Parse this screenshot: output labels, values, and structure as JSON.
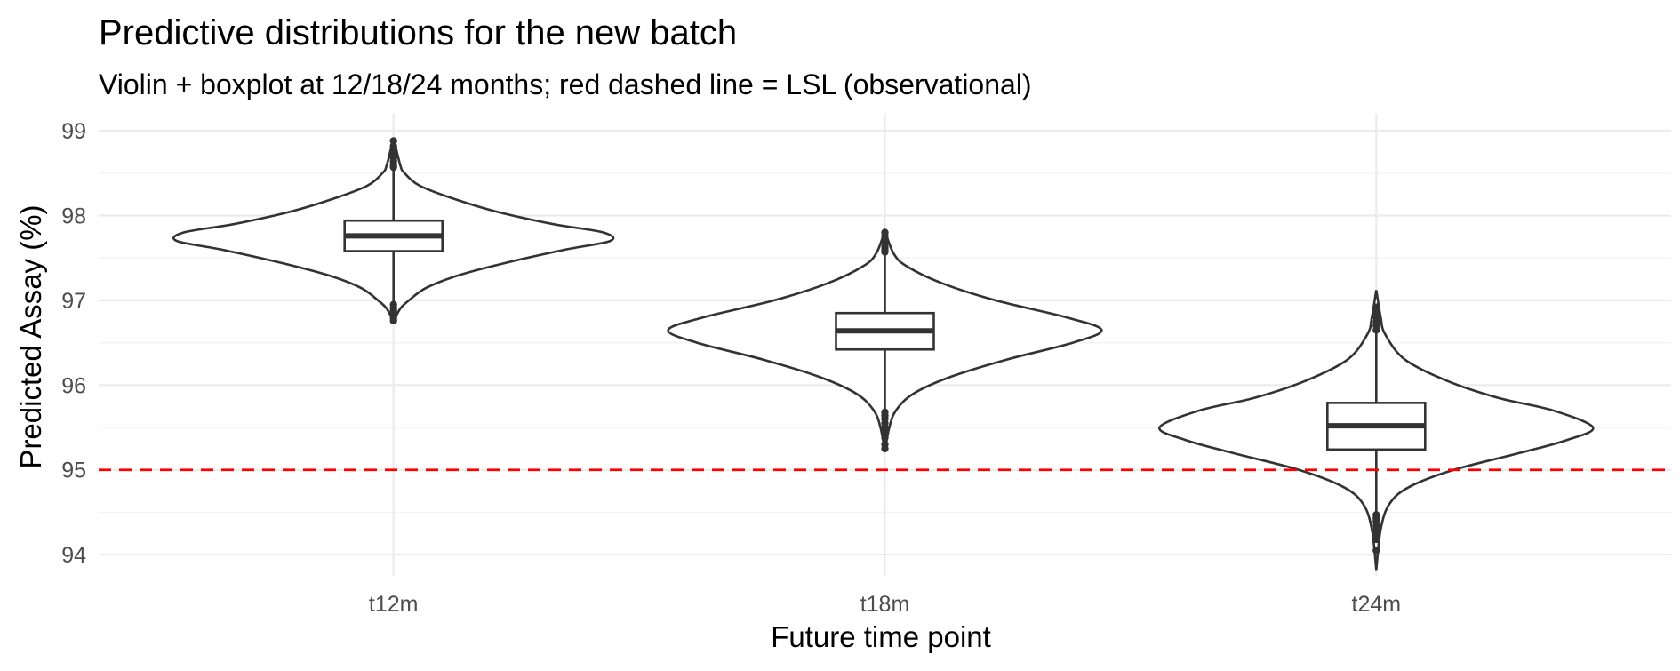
{
  "title": "Predictive distributions for the new batch",
  "subtitle": "Violin + boxplot at 12/18/24 months; red dashed line = LSL (observational)",
  "chart_data": {
    "type": "violin",
    "title": "Predictive distributions for the new batch",
    "subtitle": "Violin + boxplot at 12/18/24 months; red dashed line = LSL (observational)",
    "xlabel": "Future time point",
    "ylabel": "Predicted Assay (%)",
    "categories": [
      "t12m",
      "t18m",
      "t24m"
    ],
    "ylim": [
      93.75,
      99.2
    ],
    "y_ticks": [
      94,
      95,
      96,
      97,
      98,
      99
    ],
    "y_minor_ticks": [
      94.5,
      95.5,
      96.5,
      97.5,
      98.5
    ],
    "grid": true,
    "legend": "none",
    "reference_line": {
      "y": 95.0,
      "label": "LSL",
      "color": "#ff0000",
      "style": "dashed"
    },
    "series": [
      {
        "category": "t12m",
        "min": 96.75,
        "max": 98.92,
        "q1": 97.58,
        "median": 97.76,
        "q3": 97.94,
        "whisker_low": 96.97,
        "whisker_high": 98.55,
        "outliers_low": [
          96.95,
          96.91,
          96.88,
          96.85,
          96.82,
          96.79,
          96.76
        ],
        "outliers_high": [
          98.57,
          98.6,
          98.64,
          98.68,
          98.72,
          98.77,
          98.82,
          98.88
        ],
        "violin_half_width": [
          [
            96.75,
            0.0
          ],
          [
            96.9,
            0.03
          ],
          [
            97.0,
            0.07
          ],
          [
            97.15,
            0.15
          ],
          [
            97.3,
            0.3
          ],
          [
            97.45,
            0.52
          ],
          [
            97.6,
            0.78
          ],
          [
            97.7,
            0.98
          ],
          [
            97.8,
            0.95
          ],
          [
            97.9,
            0.72
          ],
          [
            98.05,
            0.46
          ],
          [
            98.2,
            0.27
          ],
          [
            98.35,
            0.12
          ],
          [
            98.5,
            0.05
          ],
          [
            98.6,
            0.03
          ],
          [
            98.92,
            0.0
          ]
        ]
      },
      {
        "category": "t18m",
        "min": 95.22,
        "max": 97.82,
        "q1": 96.42,
        "median": 96.64,
        "q3": 96.85,
        "whisker_low": 95.7,
        "whisker_high": 97.55,
        "outliers_low": [
          95.68,
          95.64,
          95.6,
          95.55,
          95.5,
          95.45,
          95.38,
          95.3,
          95.25
        ],
        "outliers_high": [
          97.57,
          97.6,
          97.63,
          97.67,
          97.71,
          97.76,
          97.8
        ],
        "violin_half_width": [
          [
            95.22,
            0.0
          ],
          [
            95.5,
            0.02
          ],
          [
            95.7,
            0.05
          ],
          [
            95.9,
            0.13
          ],
          [
            96.1,
            0.3
          ],
          [
            96.3,
            0.55
          ],
          [
            96.5,
            0.85
          ],
          [
            96.65,
            0.98
          ],
          [
            96.8,
            0.82
          ],
          [
            97.0,
            0.5
          ],
          [
            97.2,
            0.26
          ],
          [
            97.4,
            0.1
          ],
          [
            97.55,
            0.04
          ],
          [
            97.82,
            0.0
          ]
        ]
      },
      {
        "category": "t24m",
        "min": 93.82,
        "max": 97.12,
        "q1": 95.24,
        "median": 95.52,
        "q3": 95.79,
        "whisker_low": 94.5,
        "whisker_high": 96.62,
        "outliers_low": [
          94.47,
          94.43,
          94.39,
          94.34,
          94.29,
          94.24,
          94.18,
          94.05
        ],
        "outliers_high": [
          96.65,
          96.7,
          96.75,
          96.8,
          96.86,
          96.92
        ],
        "violin_half_width": [
          [
            93.82,
            0.0
          ],
          [
            94.3,
            0.02
          ],
          [
            94.6,
            0.06
          ],
          [
            94.8,
            0.15
          ],
          [
            95.0,
            0.35
          ],
          [
            95.2,
            0.65
          ],
          [
            95.35,
            0.86
          ],
          [
            95.5,
            0.98
          ],
          [
            95.7,
            0.8
          ],
          [
            95.85,
            0.55
          ],
          [
            96.05,
            0.32
          ],
          [
            96.3,
            0.13
          ],
          [
            96.6,
            0.04
          ],
          [
            96.8,
            0.02
          ],
          [
            97.12,
            0.0
          ]
        ]
      }
    ]
  }
}
